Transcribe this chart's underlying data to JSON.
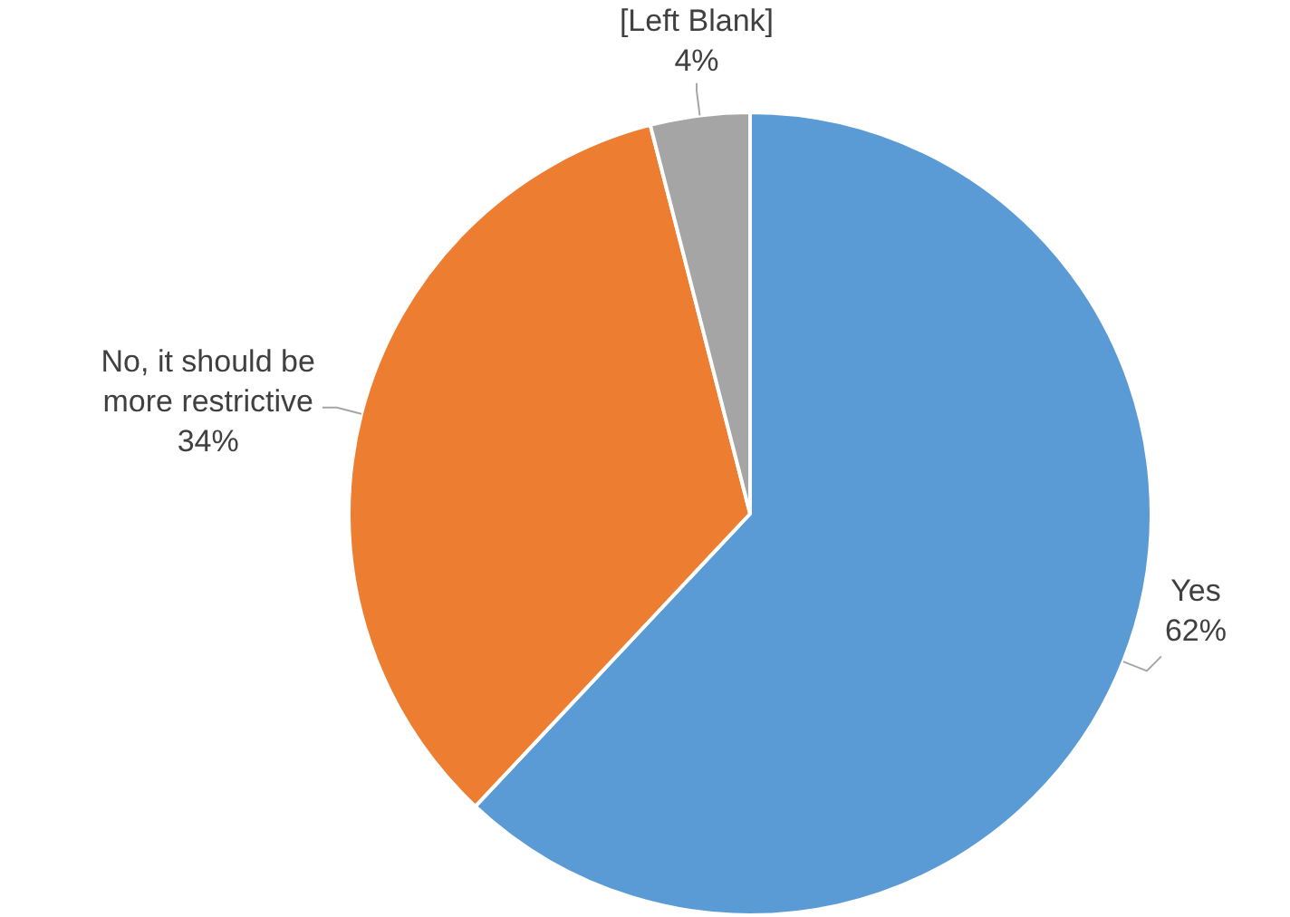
{
  "chart_data": {
    "type": "pie",
    "categories": [
      "Yes",
      "No, it should be more restrictive",
      "[Left Blank]"
    ],
    "values": [
      62,
      34,
      4
    ],
    "colors": [
      "#5b9bd5",
      "#ed7d31",
      "#a5a5a5"
    ],
    "value_labels": [
      "62%",
      "34%",
      "4%"
    ],
    "legend": false
  }
}
